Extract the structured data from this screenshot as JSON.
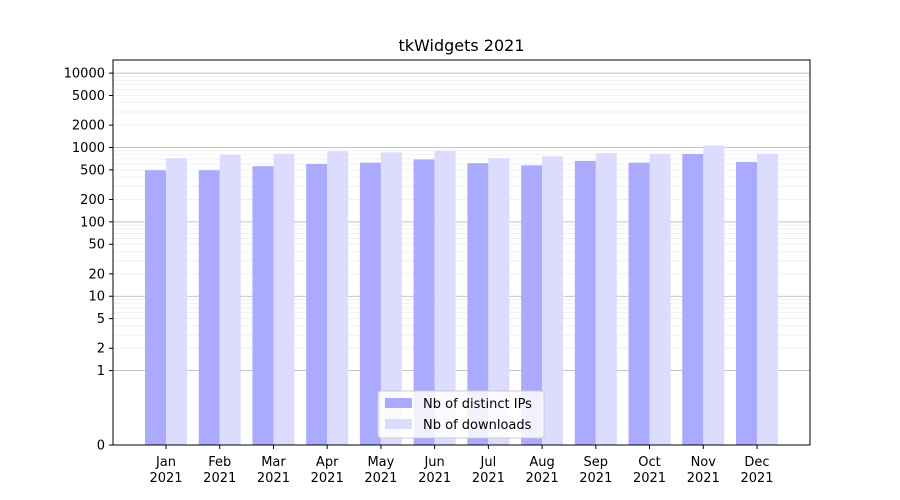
{
  "chart_data": {
    "type": "bar",
    "title": "tkWidgets 2021",
    "xlabel": "",
    "ylabel": "",
    "yscale": "symlog",
    "ylim": [
      0,
      15000
    ],
    "y_ticks": [
      0,
      1,
      2,
      5,
      10,
      20,
      50,
      100,
      200,
      500,
      1000,
      2000,
      5000,
      10000
    ],
    "grid": true,
    "legend_position": "bottom-center",
    "categories": [
      "Jan\n2021",
      "Feb\n2021",
      "Mar\n2021",
      "Apr\n2021",
      "May\n2021",
      "Jun\n2021",
      "Jul\n2021",
      "Aug\n2021",
      "Sep\n2021",
      "Oct\n2021",
      "Nov\n2021",
      "Dec\n2021"
    ],
    "series": [
      {
        "name": "Nb of distinct IPs",
        "color": "#aaaaff",
        "values": [
          495,
          495,
          560,
          600,
          625,
          690,
          615,
          575,
          660,
          625,
          820,
          640
        ]
      },
      {
        "name": "Nb of downloads",
        "color": "#dcdcff",
        "values": [
          720,
          800,
          820,
          890,
          860,
          900,
          720,
          760,
          840,
          820,
          1060,
          820
        ]
      }
    ]
  }
}
